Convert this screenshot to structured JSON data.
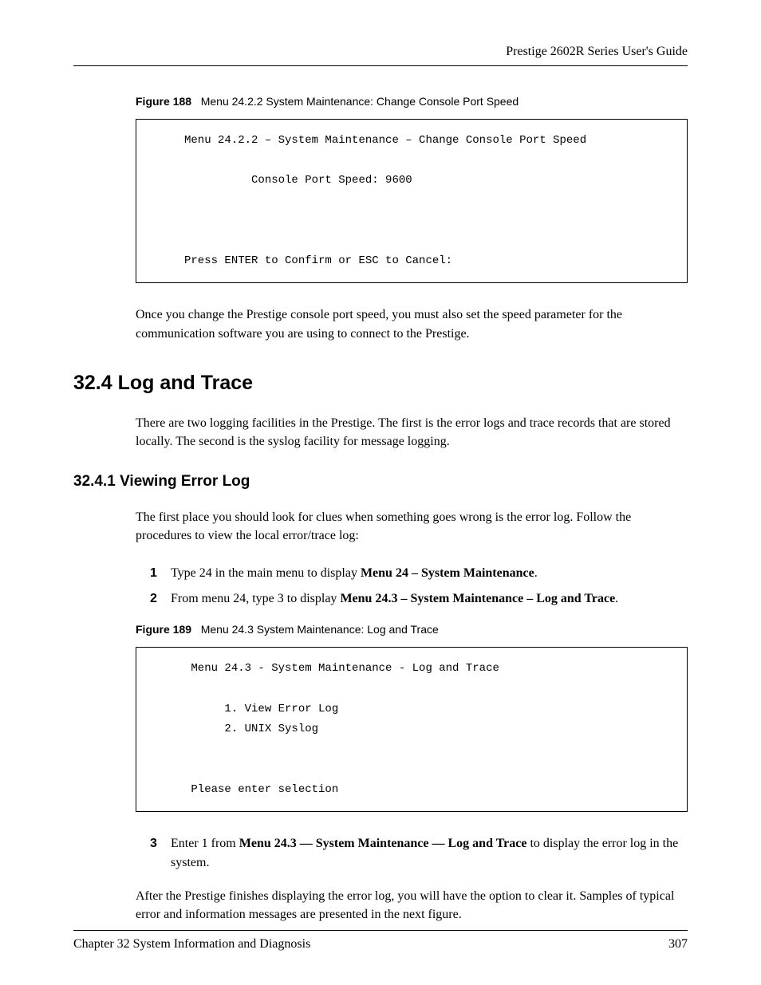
{
  "header": {
    "title": "Prestige 2602R Series User's Guide"
  },
  "fig188": {
    "caption_label": "Figure 188",
    "caption_text": "Menu 24.2.2 System Maintenance: Change Console Port Speed",
    "line1": "     Menu 24.2.2 – System Maintenance – Change Console Port Speed",
    "line2": "               Console Port Speed: 9600",
    "line3": "     Press ENTER to Confirm or ESC to Cancel:"
  },
  "para1": "Once you change the Prestige console port speed, you must also set the speed parameter for the communication software you are using to connect to the Prestige.",
  "sec32_4": {
    "heading": "32.4  Log and Trace",
    "para": "There are two logging facilities in the Prestige. The first is the error logs and trace records that are stored locally. The second is the syslog facility for message logging."
  },
  "sec32_4_1": {
    "heading": "32.4.1  Viewing Error Log",
    "para": "The first place you should look for clues when something goes wrong is the error log. Follow the procedures to view the local error/trace log:",
    "step1_pre": "Type 24 in the main menu to display ",
    "step1_bold": "Menu 24 – System Maintenance",
    "step1_post": ".",
    "step2_pre": "From menu 24, type 3 to display ",
    "step2_bold": "Menu 24.3 – System Maintenance – Log and Trace",
    "step2_post": "."
  },
  "fig189": {
    "caption_label": "Figure 189",
    "caption_text": "Menu 24.3 System Maintenance: Log and Trace",
    "line1": "      Menu 24.3 - System Maintenance - Log and Trace",
    "line2": "           1. View Error Log",
    "line3": "           2. UNIX Syslog",
    "line4": "      Please enter selection"
  },
  "step3": {
    "num": "3",
    "pre": "Enter 1 from ",
    "bold": "Menu 24.3 — System Maintenance — Log and Trace",
    "post": " to display the error log in the system."
  },
  "para_after": "After the Prestige finishes displaying the error log, you will have the option to clear it. Samples of typical error and information messages are presented in the next figure.",
  "footer": {
    "chapter": "Chapter 32 System Information and Diagnosis",
    "page": "307"
  },
  "nums": {
    "n1": "1",
    "n2": "2",
    "n3": "3"
  }
}
